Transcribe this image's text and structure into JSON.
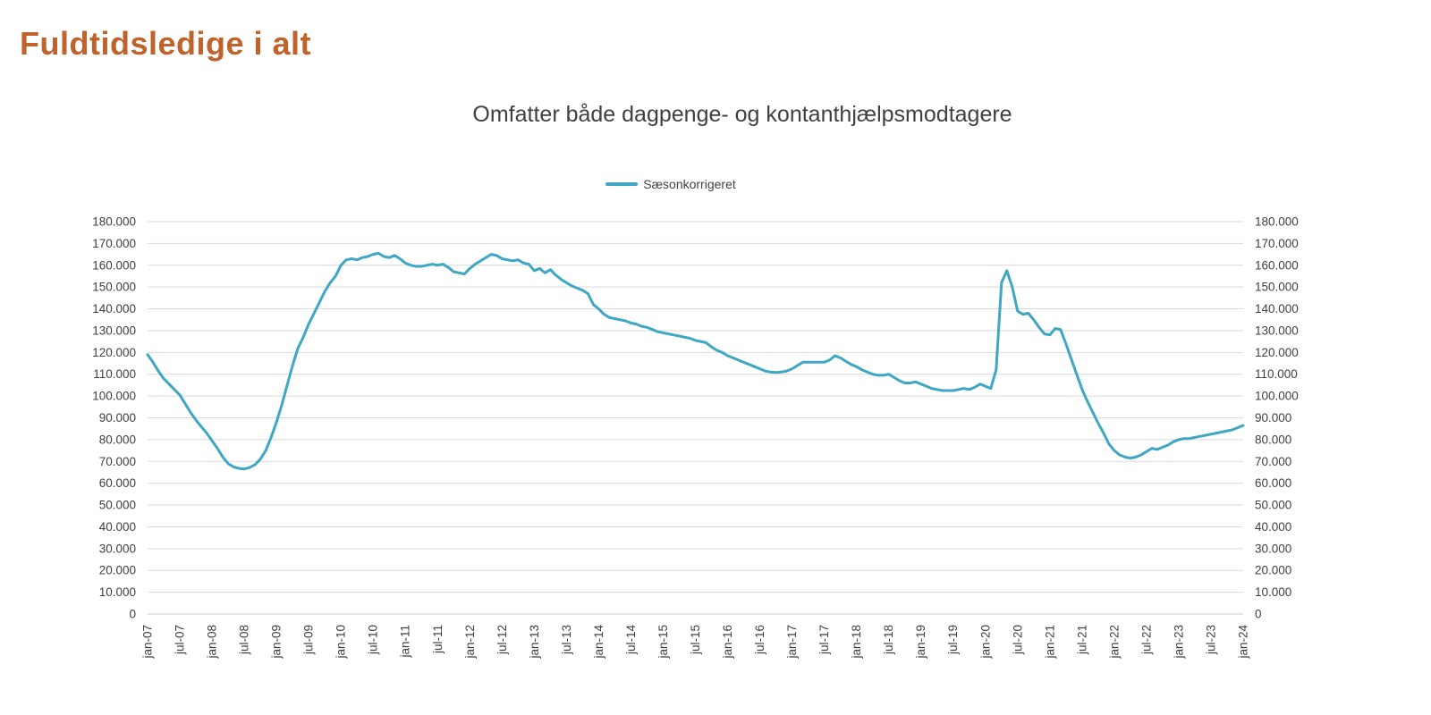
{
  "header": {
    "title": "Fuldtidsledige i alt"
  },
  "chart": {
    "subtitle": "Omfatter både dagpenge- og kontanthjælpsmodtagere",
    "legend_label": "Sæsonkorrigeret"
  },
  "colors": {
    "title": "#C0622B",
    "line": "#3FA6C4",
    "gridline": "#D9D9D9",
    "baseline": "#C8C8C8",
    "axis_text": "#404040"
  },
  "chart_data": {
    "type": "line",
    "title": "Omfatter både dagpenge- og kontanthjælpsmodtagere",
    "legend_position": "top",
    "grid": "horizontal",
    "ylim": [
      0,
      180000
    ],
    "y_tick_step": 10000,
    "y_tick_labels": [
      "0",
      "10.000",
      "20.000",
      "30.000",
      "40.000",
      "50.000",
      "60.000",
      "70.000",
      "80.000",
      "90.000",
      "100.000",
      "110.000",
      "120.000",
      "130.000",
      "140.000",
      "150.000",
      "160.000",
      "170.000",
      "180.000"
    ],
    "y_axis_sides": [
      "left",
      "right"
    ],
    "x_tick_labels": [
      "jan-07",
      "jul-07",
      "jan-08",
      "jul-08",
      "jan-09",
      "jul-09",
      "jan-10",
      "jul-10",
      "jan-11",
      "jul-11",
      "jan-12",
      "jul-12",
      "jan-13",
      "jul-13",
      "jan-14",
      "jul-14",
      "jan-15",
      "jul-15",
      "jan-16",
      "jul-16",
      "jan-17",
      "jul-17",
      "jan-18",
      "jul-18",
      "jan-19",
      "jul-19",
      "jan-20",
      "jul-20",
      "jan-21",
      "jul-21",
      "jan-22",
      "jul-22",
      "jan-23",
      "jul-23",
      "jan-24"
    ],
    "points_per_tick": 6,
    "x_frequency": "monthly",
    "series": [
      {
        "name": "Sæsonkorrigeret",
        "color": "#3FA6C4",
        "values": [
          119000,
          115500,
          111500,
          108000,
          105500,
          103000,
          100500,
          96500,
          92500,
          89000,
          86000,
          83000,
          79500,
          76000,
          72000,
          69000,
          67500,
          66800,
          66500,
          67200,
          68500,
          71000,
          75000,
          81000,
          88000,
          96000,
          105000,
          114000,
          122000,
          127000,
          133000,
          138000,
          143000,
          148000,
          152000,
          155000,
          160000,
          162500,
          163000,
          162500,
          163500,
          164000,
          165000,
          165500,
          164000,
          163500,
          164500,
          163000,
          161000,
          160000,
          159500,
          159500,
          160000,
          160500,
          160000,
          160500,
          159000,
          157000,
          156500,
          156000,
          158500,
          160500,
          162000,
          163500,
          165000,
          164500,
          163000,
          162500,
          162000,
          162500,
          161000,
          160500,
          157500,
          158500,
          156500,
          158000,
          155500,
          153500,
          152000,
          150500,
          149500,
          148500,
          147000,
          142000,
          140000,
          137500,
          136000,
          135500,
          135000,
          134500,
          133500,
          133000,
          132000,
          131500,
          130500,
          129500,
          129000,
          128500,
          128000,
          127500,
          127000,
          126500,
          125500,
          125000,
          124500,
          122500,
          121000,
          120000,
          118500,
          117500,
          116500,
          115500,
          114500,
          113500,
          112500,
          111500,
          111000,
          110800,
          111000,
          111500,
          112500,
          114000,
          115500,
          115500,
          115500,
          115500,
          115500,
          116500,
          118500,
          117500,
          116000,
          114500,
          113500,
          112000,
          111000,
          110000,
          109500,
          109500,
          110000,
          108500,
          107000,
          106000,
          106000,
          106500,
          105500,
          104500,
          103500,
          103000,
          102500,
          102500,
          102500,
          103000,
          103500,
          103000,
          104000,
          105500,
          104500,
          103500,
          112000,
          152000,
          157500,
          150000,
          139000,
          137500,
          138000,
          135000,
          131500,
          128500,
          128000,
          131000,
          130500,
          124000,
          117000,
          110000,
          103000,
          97500,
          92500,
          87500,
          83000,
          78000,
          75000,
          73000,
          72000,
          71500,
          72000,
          73000,
          74500,
          76000,
          75500,
          76500,
          77500,
          79000,
          80000,
          80500,
          80500,
          81000,
          81500,
          82000,
          82500,
          83000,
          83500,
          84000,
          84500,
          85500,
          86500
        ]
      }
    ]
  }
}
